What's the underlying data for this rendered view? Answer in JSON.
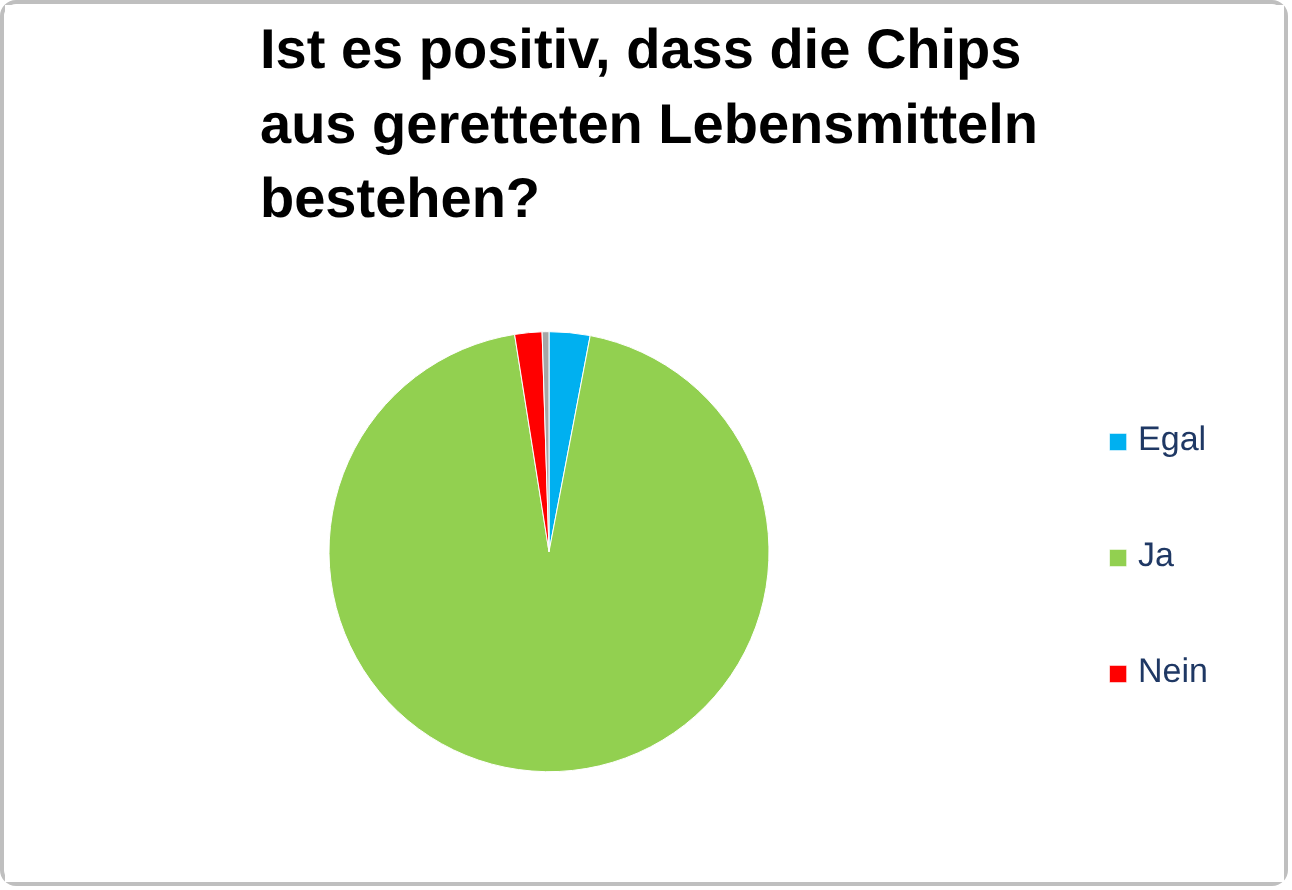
{
  "chart_data": {
    "type": "pie",
    "title": "Ist es positiv, dass die Chips aus geretteten Lebensmitteln bestehen?",
    "categories": [
      "Egal",
      "Ja",
      "Nein",
      null
    ],
    "values": [
      3,
      94.5,
      2,
      0.5
    ],
    "colors": [
      "#00b0f0",
      "#92d050",
      "#ff0000",
      "#a6a6a6"
    ],
    "legend": "right"
  }
}
